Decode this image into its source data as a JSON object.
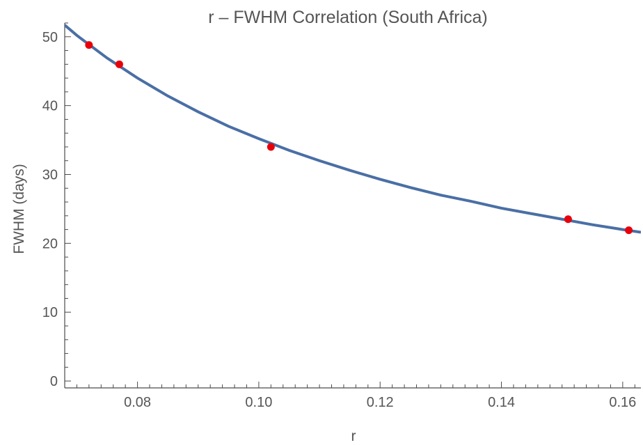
{
  "chart_data": {
    "type": "scatter",
    "title": "r – FWHM Correlation (South Africa)",
    "xlabel": "r",
    "ylabel": "FWHM (days)",
    "xlim": [
      0.068,
      0.163
    ],
    "ylim": [
      -1,
      52
    ],
    "xticks": [
      0.08,
      0.1,
      0.12,
      0.14,
      0.16
    ],
    "xtick_labels": [
      "0.08",
      "0.10",
      "0.12",
      "0.14",
      "0.16"
    ],
    "yticks": [
      0,
      10,
      20,
      30,
      40,
      50
    ],
    "ytick_labels": [
      "0",
      "10",
      "20",
      "30",
      "40",
      "50"
    ],
    "grid": false,
    "series": [
      {
        "type": "scatter",
        "color": "#e8000b",
        "x": [
          0.072,
          0.077,
          0.102,
          0.151,
          0.161
        ],
        "y": [
          48.8,
          46.0,
          34.0,
          23.5,
          21.9
        ]
      },
      {
        "type": "line",
        "color": "#4a6fa5",
        "x": [
          0.068,
          0.07,
          0.075,
          0.08,
          0.085,
          0.09,
          0.095,
          0.1,
          0.105,
          0.11,
          0.115,
          0.12,
          0.125,
          0.13,
          0.135,
          0.14,
          0.145,
          0.15,
          0.155,
          0.16,
          0.163
        ],
        "y": [
          51.7,
          50.2,
          46.9,
          44.0,
          41.4,
          39.1,
          37.0,
          35.2,
          33.5,
          32.0,
          30.6,
          29.3,
          28.1,
          27.0,
          26.1,
          25.1,
          24.3,
          23.5,
          22.7,
          22.0,
          21.6
        ]
      }
    ]
  }
}
